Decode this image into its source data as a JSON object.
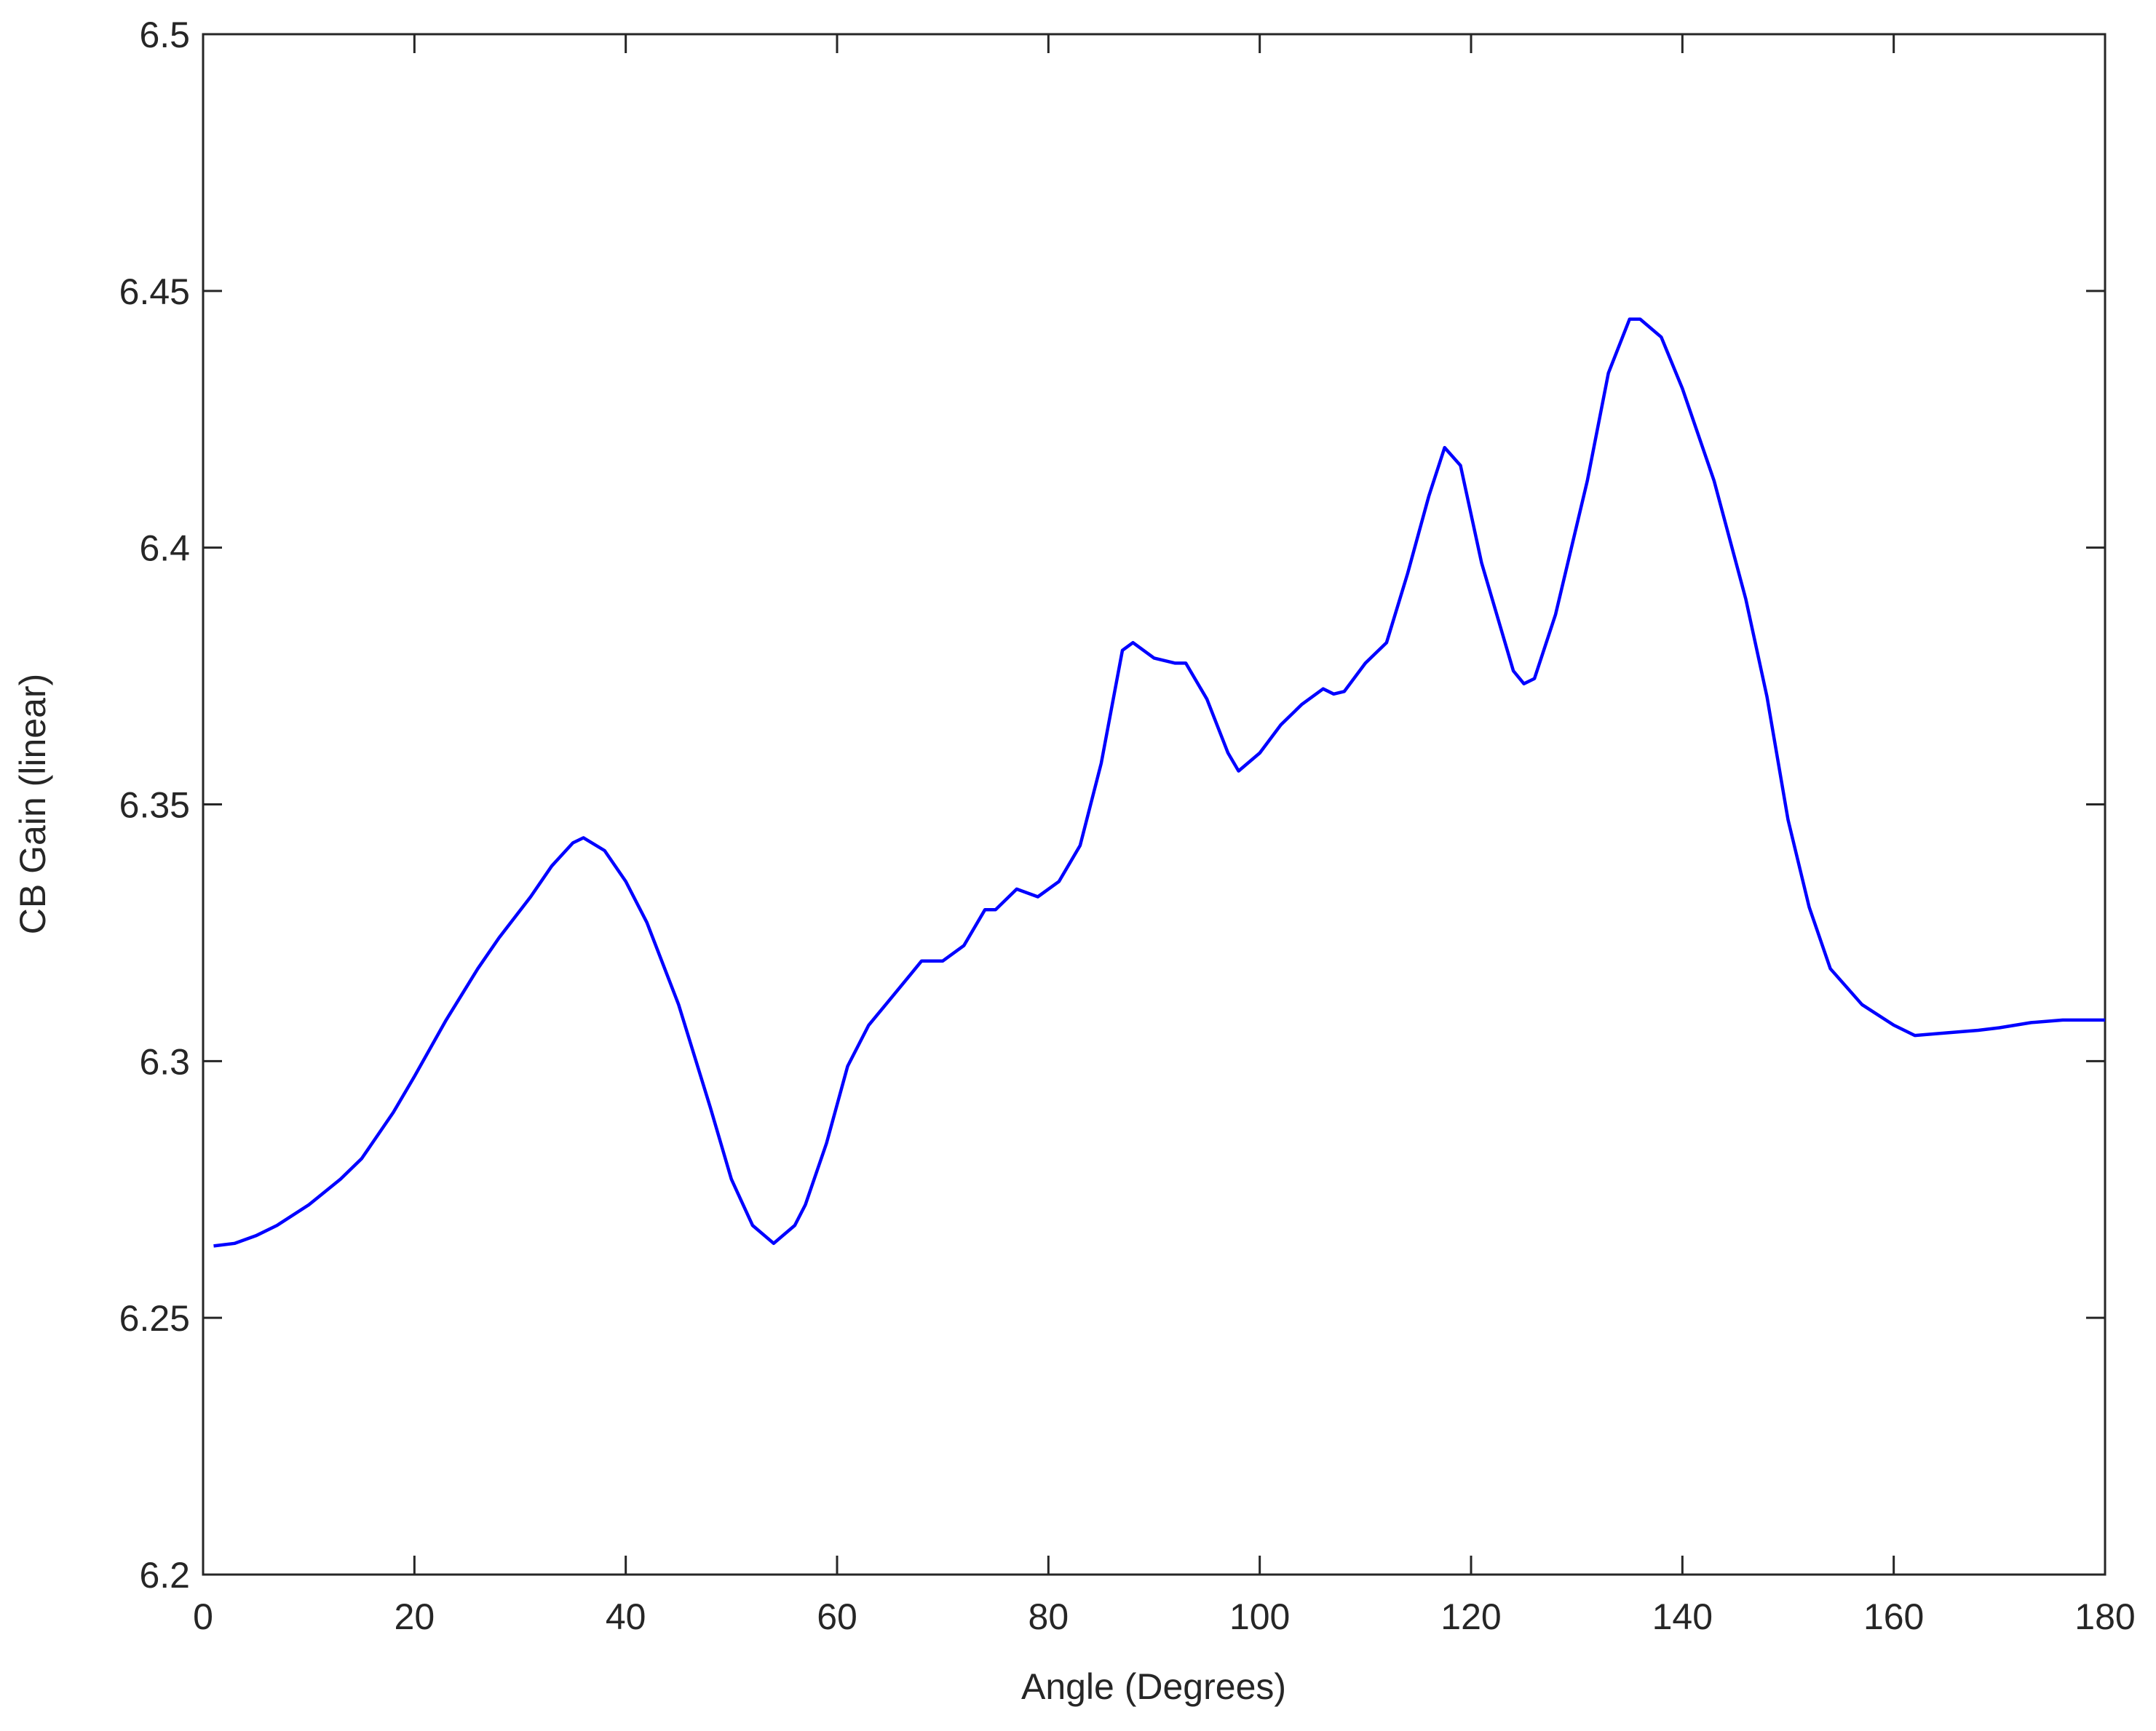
{
  "chart_data": {
    "type": "line",
    "x_label": "Angle (Degrees)",
    "y_label": "CB Gain (linear)",
    "xlim": [
      0,
      180
    ],
    "xticks": [
      0,
      20,
      40,
      60,
      80,
      100,
      120,
      140,
      160,
      180
    ],
    "ylim": [
      6.2,
      6.5
    ],
    "yticks": [
      6.2,
      6.25,
      6.3,
      6.35,
      6.4,
      6.45,
      6.5
    ],
    "series": [
      {
        "color": "#0000ff",
        "x": [
          1,
          3,
          5,
          7,
          10,
          13,
          15,
          18,
          20,
          23,
          26,
          28,
          31,
          33,
          35,
          36,
          38,
          40,
          42,
          45,
          48,
          50,
          52,
          54,
          56,
          57,
          59,
          61,
          63,
          65,
          67,
          68,
          70,
          72,
          74,
          75,
          77,
          79,
          81,
          83,
          85,
          87,
          88,
          90,
          92,
          93,
          95,
          97,
          98,
          100,
          102,
          104,
          106,
          107,
          108,
          110,
          112,
          114,
          116,
          117.5,
          119,
          121,
          124,
          125,
          126,
          128,
          131,
          133,
          135,
          136,
          138,
          140,
          143,
          146,
          148,
          150,
          152,
          154,
          157,
          160,
          162,
          165,
          168,
          170,
          173,
          176,
          180
        ],
        "values": [
          6.264,
          6.2645,
          6.266,
          6.268,
          6.272,
          6.277,
          6.281,
          6.29,
          6.297,
          6.308,
          6.318,
          6.324,
          6.332,
          6.338,
          6.3425,
          6.3435,
          6.341,
          6.335,
          6.327,
          6.311,
          6.291,
          6.277,
          6.268,
          6.2645,
          6.268,
          6.272,
          6.284,
          6.299,
          6.307,
          6.312,
          6.317,
          6.3195,
          6.3195,
          6.3225,
          6.3295,
          6.3295,
          6.3335,
          6.332,
          6.335,
          6.342,
          6.358,
          6.38,
          6.3815,
          6.3785,
          6.3775,
          6.3775,
          6.3705,
          6.36,
          6.3565,
          6.36,
          6.3655,
          6.3695,
          6.3725,
          6.3715,
          6.372,
          6.3775,
          6.3815,
          6.395,
          6.41,
          6.4195,
          6.416,
          6.397,
          6.376,
          6.3735,
          6.3745,
          6.387,
          6.413,
          6.434,
          6.4445,
          6.4445,
          6.441,
          6.431,
          6.413,
          6.39,
          6.371,
          6.347,
          6.33,
          6.318,
          6.311,
          6.307,
          6.305,
          6.3055,
          6.306,
          6.3065,
          6.3075,
          6.308,
          6.308
        ]
      }
    ]
  }
}
